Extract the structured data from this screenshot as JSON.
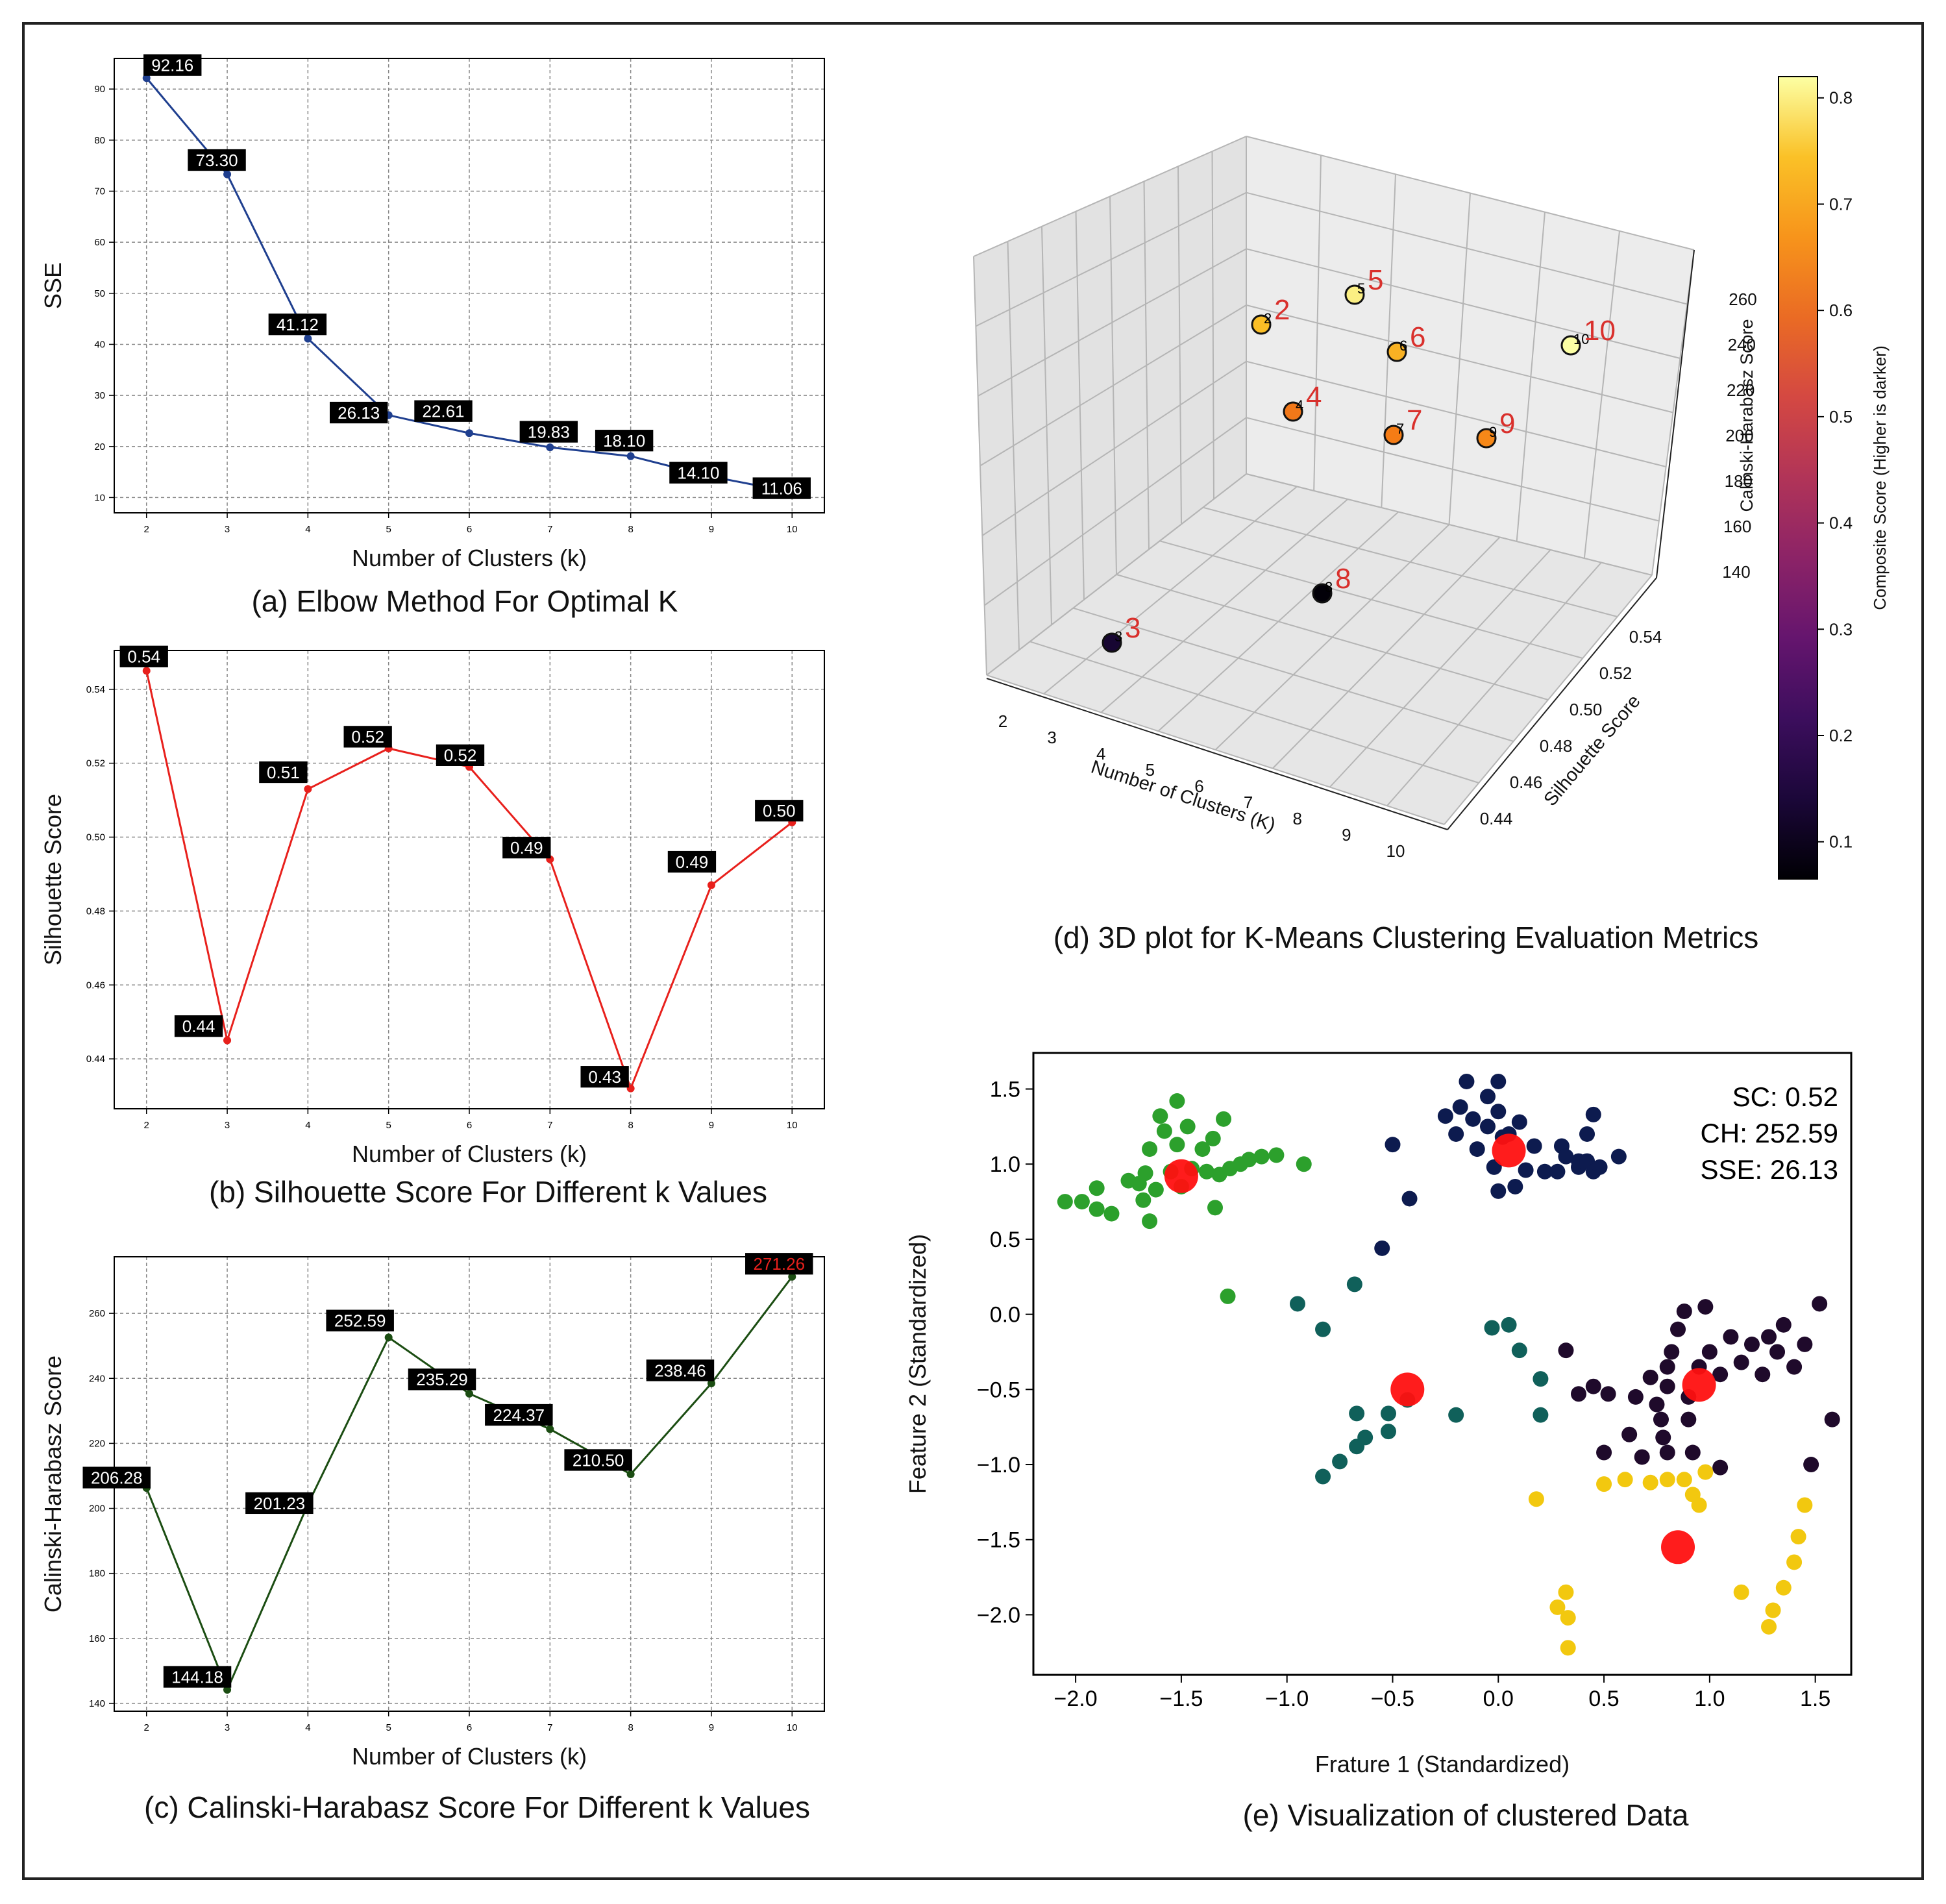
{
  "figure": {
    "captions": {
      "a": "(a) Elbow Method For Optimal K",
      "b": "(b) Silhouette Score For Different k Values",
      "c": "(c) Calinski-Harabasz Score For Different k Values",
      "d": "(d) 3D plot for K-Means Clustering Evaluation Metrics",
      "e": "(e) Visualization of clustered Data"
    }
  },
  "chart_data": [
    {
      "id": "a",
      "type": "line",
      "title": "(a) Elbow Method For Optimal K",
      "xlabel": "Number of Clusters (k)",
      "ylabel": "SSE",
      "x": [
        2,
        3,
        4,
        5,
        6,
        7,
        8,
        9,
        10
      ],
      "values": [
        92.16,
        73.3,
        41.12,
        26.13,
        22.61,
        19.83,
        18.1,
        14.1,
        11.06
      ],
      "labels": [
        "92.16",
        "73.30",
        "41.12",
        "26.13",
        "22.61",
        "19.83",
        "18.10",
        "14.10",
        "11.06"
      ],
      "xticks": [
        "2",
        "3",
        "4",
        "5",
        "6",
        "7",
        "8",
        "9",
        "10"
      ],
      "yticks": [
        "10",
        "20",
        "30",
        "40",
        "50",
        "60",
        "70",
        "80",
        "90"
      ],
      "yticks_values": [
        10,
        20,
        30,
        40,
        50,
        60,
        70,
        80,
        90
      ],
      "xlim": [
        1.6,
        10.4
      ],
      "ylim": [
        7,
        96
      ],
      "color": "#1f3f8f",
      "grid": true
    },
    {
      "id": "b",
      "type": "line",
      "title": "(b) Silhouette Score For Different k Values",
      "xlabel": "Number of Clusters (k)",
      "ylabel": "Silhouette Score",
      "x": [
        2,
        3,
        4,
        5,
        6,
        7,
        8,
        9,
        10
      ],
      "values": [
        0.545,
        0.445,
        0.513,
        0.524,
        0.519,
        0.494,
        0.432,
        0.487,
        0.504
      ],
      "labels": [
        "0.54",
        "0.44",
        "0.51",
        "0.52",
        "0.52",
        "0.49",
        "0.43",
        "0.49",
        "0.50"
      ],
      "xticks": [
        "2",
        "3",
        "4",
        "5",
        "6",
        "7",
        "8",
        "9",
        "10"
      ],
      "yticks": [
        "0.44",
        "0.46",
        "0.48",
        "0.50",
        "0.52",
        "0.54"
      ],
      "yticks_values": [
        0.44,
        0.46,
        0.48,
        0.5,
        0.52,
        0.54
      ],
      "xlim": [
        1.6,
        10.4
      ],
      "ylim": [
        0.4265,
        0.5505
      ],
      "color": "#e8201c",
      "grid": true
    },
    {
      "id": "c",
      "type": "line",
      "title": "(c) Calinski-Harabasz Score For Different k Values",
      "xlabel": "Number of Clusters (k)",
      "ylabel": "Calinski-Harabasz Score",
      "x": [
        2,
        3,
        4,
        5,
        6,
        7,
        8,
        9,
        10
      ],
      "values": [
        206.28,
        144.18,
        201.23,
        252.59,
        235.29,
        224.37,
        210.5,
        238.46,
        271.26
      ],
      "labels": [
        "206.28",
        "144.18",
        "201.23",
        "252.59",
        "235.29",
        "224.37",
        "210.50",
        "238.46",
        "271.26"
      ],
      "highlight_label": "271.26",
      "highlight_color": "#e8201c",
      "xticks": [
        "2",
        "3",
        "4",
        "5",
        "6",
        "7",
        "8",
        "9",
        "10"
      ],
      "yticks": [
        "140",
        "160",
        "180",
        "200",
        "220",
        "240",
        "260"
      ],
      "yticks_values": [
        140,
        160,
        180,
        200,
        220,
        240,
        260
      ],
      "xlim": [
        1.6,
        10.4
      ],
      "ylim": [
        137.6,
        277.4
      ],
      "color": "#1b4d12",
      "grid": true
    },
    {
      "id": "d",
      "type": "scatter",
      "title": "(d) 3D plot for K-Means Clustering Evaluation Metrics",
      "xlabel": "Number of Clusters (K)",
      "ylabel": "Silhouette Score",
      "zlabel": "Calinski-Harabasz Score",
      "colorbar_label": "Composite Score (Higher is darker)",
      "colorbar_ticks": [
        "0.1",
        "0.2",
        "0.3",
        "0.4",
        "0.5",
        "0.6",
        "0.7",
        "0.8"
      ],
      "colorbar_tick_values": [
        0.1,
        0.2,
        0.3,
        0.4,
        0.5,
        0.6,
        0.7,
        0.8
      ],
      "colorbar_range": [
        0.065,
        0.82
      ],
      "xticks": [
        "2",
        "3",
        "4",
        "5",
        "6",
        "7",
        "8",
        "9",
        "10"
      ],
      "yticks": [
        "0.44",
        "0.46",
        "0.48",
        "0.50",
        "0.52",
        "0.54"
      ],
      "zticks": [
        "140",
        "160",
        "180",
        "200",
        "220",
        "240",
        "260"
      ],
      "points": [
        {
          "label": "2",
          "big_label": "2",
          "k": 2,
          "silhouette": 0.54,
          "ch": 206.28,
          "composite": 0.74
        },
        {
          "label": "3",
          "big_label": "3",
          "k": 3,
          "silhouette": 0.44,
          "ch": 144.18,
          "composite": 0.13
        },
        {
          "label": "4",
          "big_label": "4",
          "k": 4,
          "silhouette": 0.51,
          "ch": 201.23,
          "composite": 0.62
        },
        {
          "label": "5",
          "big_label": "5",
          "k": 5,
          "silhouette": 0.52,
          "ch": 252.59,
          "composite": 0.8
        },
        {
          "label": "6",
          "big_label": "6",
          "k": 6,
          "silhouette": 0.52,
          "ch": 235.29,
          "composite": 0.72
        },
        {
          "label": "7",
          "big_label": "7",
          "k": 7,
          "silhouette": 0.49,
          "ch": 224.37,
          "composite": 0.63
        },
        {
          "label": "8",
          "big_label": "8",
          "k": 8,
          "silhouette": 0.43,
          "ch": 210.5,
          "composite": 0.07
        },
        {
          "label": "9",
          "big_label": "9",
          "k": 9,
          "silhouette": 0.49,
          "ch": 238.46,
          "composite": 0.65
        },
        {
          "label": "10",
          "big_label": "10",
          "k": 10,
          "silhouette": 0.5,
          "ch": 271.26,
          "composite": 0.82
        }
      ]
    },
    {
      "id": "e",
      "type": "scatter",
      "title": "(e) Visualization of clustered Data",
      "xlabel": "Frature 1 (Standardized)",
      "ylabel": "Feature 2 (Standardized)",
      "xticks": [
        "−2.0",
        "−1.5",
        "−1.0",
        "−0.5",
        "0.0",
        "0.5",
        "1.0",
        "1.5"
      ],
      "xticks_values": [
        -2.0,
        -1.5,
        -1.0,
        -0.5,
        0.0,
        0.5,
        1.0,
        1.5
      ],
      "yticks": [
        "−2.0",
        "−1.5",
        "−1.0",
        "−0.5",
        "0.0",
        "0.5",
        "1.0",
        "1.5"
      ],
      "yticks_values": [
        -2.0,
        -1.5,
        -1.0,
        -0.5,
        0.0,
        0.5,
        1.0,
        1.5
      ],
      "xlim": [
        -2.2,
        1.67
      ],
      "ylim": [
        -2.4,
        1.74
      ],
      "annotations": [
        "SC: 0.52",
        "CH: 252.59",
        "SSE: 26.13"
      ],
      "clusters": [
        {
          "name": "green",
          "color": "#2ca02c",
          "points": [
            [
              -2.05,
              0.75
            ],
            [
              -1.97,
              0.75
            ],
            [
              -1.9,
              0.84
            ],
            [
              -1.9,
              0.7
            ],
            [
              -1.83,
              0.67
            ],
            [
              -1.75,
              0.89
            ],
            [
              -1.7,
              0.87
            ],
            [
              -1.68,
              0.76
            ],
            [
              -1.67,
              0.94
            ],
            [
              -1.65,
              0.62
            ],
            [
              -1.65,
              1.1
            ],
            [
              -1.62,
              0.83
            ],
            [
              -1.6,
              1.32
            ],
            [
              -1.58,
              1.22
            ],
            [
              -1.55,
              0.95
            ],
            [
              -1.52,
              1.42
            ],
            [
              -1.52,
              1.13
            ],
            [
              -1.5,
              0.85
            ],
            [
              -1.47,
              1.25
            ],
            [
              -1.45,
              0.97
            ],
            [
              -1.4,
              1.1
            ],
            [
              -1.38,
              0.95
            ],
            [
              -1.35,
              1.17
            ],
            [
              -1.34,
              0.71
            ],
            [
              -1.32,
              0.93
            ],
            [
              -1.3,
              1.3
            ],
            [
              -1.27,
              0.97
            ],
            [
              -1.22,
              1.0
            ],
            [
              -1.18,
              1.03
            ],
            [
              -1.12,
              1.05
            ],
            [
              -1.05,
              1.06
            ],
            [
              -0.92,
              1.0
            ],
            [
              -1.28,
              0.12
            ]
          ]
        },
        {
          "name": "navy",
          "color": "#0d1b4f",
          "points": [
            [
              -0.42,
              0.77
            ],
            [
              -0.5,
              1.13
            ],
            [
              -0.55,
              0.44
            ],
            [
              -0.25,
              1.32
            ],
            [
              -0.2,
              1.2
            ],
            [
              -0.18,
              1.38
            ],
            [
              -0.15,
              1.55
            ],
            [
              -0.12,
              1.3
            ],
            [
              -0.1,
              1.1
            ],
            [
              -0.05,
              1.25
            ],
            [
              -0.05,
              1.45
            ],
            [
              -0.02,
              0.98
            ],
            [
              0.0,
              1.35
            ],
            [
              0.0,
              1.55
            ],
            [
              0.02,
              1.18
            ],
            [
              0.0,
              0.82
            ],
            [
              0.05,
              1.2
            ],
            [
              0.08,
              0.85
            ],
            [
              0.1,
              1.28
            ],
            [
              0.13,
              0.96
            ],
            [
              0.17,
              1.12
            ],
            [
              0.22,
              0.95
            ],
            [
              0.28,
              0.95
            ],
            [
              0.3,
              1.12
            ],
            [
              0.32,
              1.05
            ],
            [
              0.38,
              0.98
            ],
            [
              0.38,
              1.02
            ],
            [
              0.42,
              1.02
            ],
            [
              0.45,
              1.33
            ],
            [
              0.45,
              0.95
            ],
            [
              0.42,
              1.2
            ],
            [
              0.48,
              0.98
            ],
            [
              0.57,
              1.05
            ]
          ]
        },
        {
          "name": "teal",
          "color": "#10605a",
          "points": [
            [
              -0.68,
              0.2
            ],
            [
              -0.95,
              0.07
            ],
            [
              -0.83,
              -0.1
            ],
            [
              -0.67,
              -0.66
            ],
            [
              -0.63,
              -0.82
            ],
            [
              -0.67,
              -0.88
            ],
            [
              -0.75,
              -0.98
            ],
            [
              -0.83,
              -1.08
            ],
            [
              -0.52,
              -0.66
            ],
            [
              -0.52,
              -0.78
            ],
            [
              -0.43,
              -0.57
            ],
            [
              -0.2,
              -0.67
            ],
            [
              -0.03,
              -0.09
            ],
            [
              0.05,
              -0.07
            ],
            [
              0.1,
              -0.24
            ],
            [
              0.2,
              -0.43
            ],
            [
              0.2,
              -0.67
            ]
          ]
        },
        {
          "name": "purple",
          "color": "#1f0a2b",
          "points": [
            [
              0.32,
              -0.24
            ],
            [
              0.38,
              -0.53
            ],
            [
              0.45,
              -0.48
            ],
            [
              0.5,
              -0.92
            ],
            [
              0.52,
              -0.53
            ],
            [
              0.62,
              -0.8
            ],
            [
              0.65,
              -0.55
            ],
            [
              0.68,
              -0.95
            ],
            [
              0.72,
              -0.42
            ],
            [
              0.75,
              -0.6
            ],
            [
              0.77,
              -0.7
            ],
            [
              0.78,
              -0.82
            ],
            [
              0.8,
              -0.35
            ],
            [
              0.8,
              -0.48
            ],
            [
              0.8,
              -0.92
            ],
            [
              0.82,
              -0.25
            ],
            [
              0.85,
              -0.1
            ],
            [
              0.88,
              0.02
            ],
            [
              0.9,
              -0.55
            ],
            [
              0.9,
              -0.7
            ],
            [
              0.92,
              -0.92
            ],
            [
              0.95,
              -0.35
            ],
            [
              0.98,
              0.05
            ],
            [
              1.0,
              -0.25
            ],
            [
              1.05,
              -0.4
            ],
            [
              1.05,
              -1.02
            ],
            [
              1.1,
              -0.15
            ],
            [
              1.15,
              -0.32
            ],
            [
              1.2,
              -0.2
            ],
            [
              1.25,
              -0.4
            ],
            [
              1.28,
              -0.15
            ],
            [
              1.32,
              -0.25
            ],
            [
              1.35,
              -0.07
            ],
            [
              1.4,
              -0.35
            ],
            [
              1.45,
              -0.2
            ],
            [
              1.48,
              -1.0
            ],
            [
              1.52,
              0.07
            ],
            [
              1.58,
              -0.7
            ]
          ]
        },
        {
          "name": "yellow",
          "color": "#f2c80f",
          "points": [
            [
              0.18,
              -1.23
            ],
            [
              0.28,
              -1.95
            ],
            [
              0.32,
              -1.85
            ],
            [
              0.33,
              -2.02
            ],
            [
              0.33,
              -2.22
            ],
            [
              0.5,
              -1.13
            ],
            [
              0.6,
              -1.1
            ],
            [
              0.72,
              -1.12
            ],
            [
              0.8,
              -1.1
            ],
            [
              0.88,
              -1.1
            ],
            [
              0.92,
              -1.2
            ],
            [
              0.95,
              -1.27
            ],
            [
              0.98,
              -1.05
            ],
            [
              1.15,
              -1.85
            ],
            [
              1.28,
              -2.08
            ],
            [
              1.3,
              -1.97
            ],
            [
              1.35,
              -1.82
            ],
            [
              1.4,
              -1.65
            ],
            [
              1.42,
              -1.48
            ],
            [
              1.45,
              -1.27
            ]
          ]
        }
      ],
      "centroids": {
        "color": "#ff1010",
        "points": [
          [
            -1.5,
            0.92
          ],
          [
            0.05,
            1.09
          ],
          [
            -0.43,
            -0.5
          ],
          [
            0.95,
            -0.47
          ],
          [
            0.85,
            -1.55
          ]
        ]
      }
    }
  ]
}
